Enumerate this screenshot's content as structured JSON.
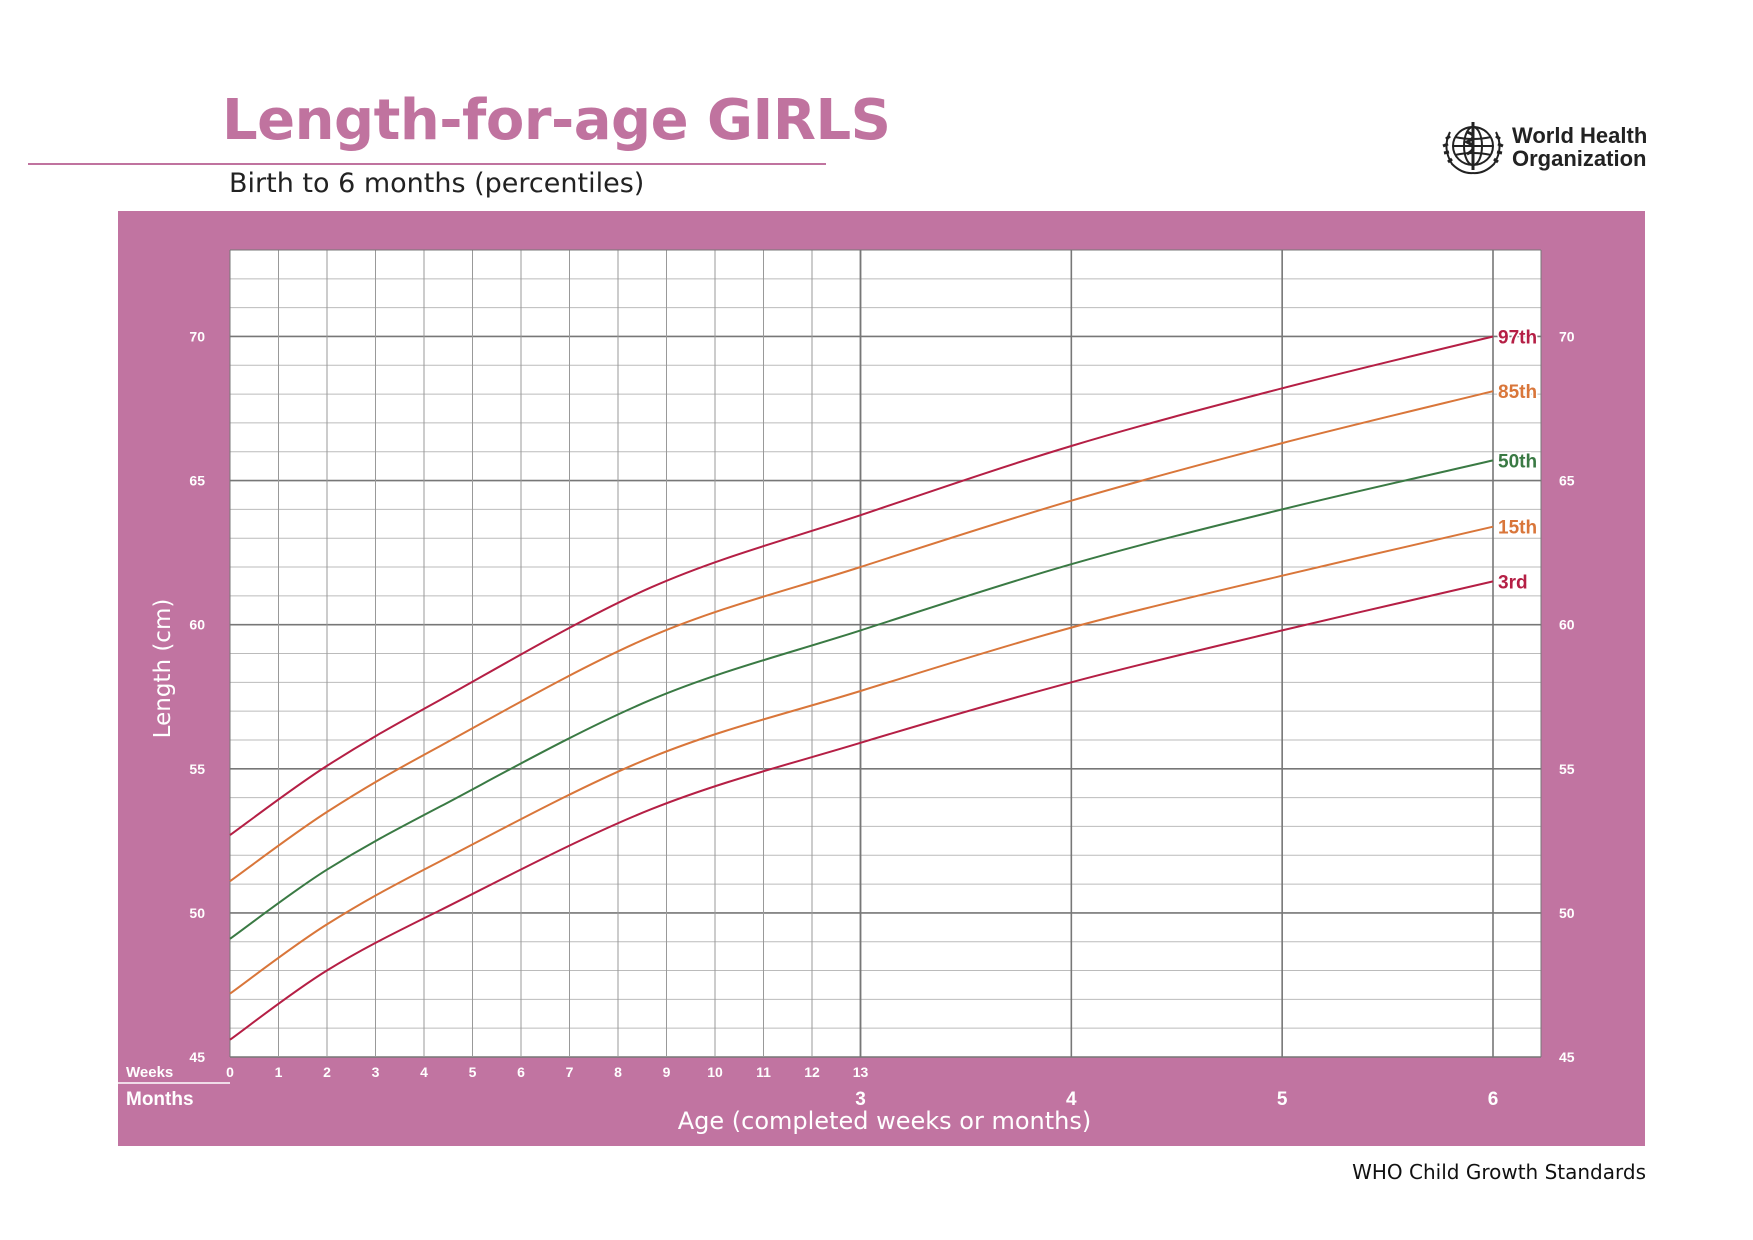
{
  "header": {
    "title": "Length-for-age GIRLS",
    "subtitle": "Birth to 6 months (percentiles)"
  },
  "organization": {
    "line1": "World Health",
    "line2": "Organization",
    "logo_icon": "who-emblem-icon"
  },
  "footer": "WHO Child Growth Standards",
  "colors": {
    "frame": "#c174a1",
    "title": "#c0739f",
    "p97": "#b51f45",
    "p85": "#d9763a",
    "p50": "#3a7a44",
    "p15": "#d9763a",
    "p3": "#b51f45"
  },
  "chart_data": {
    "type": "line",
    "ylabel": "Length (cm)",
    "xlabel": "Age (completed weeks or months)",
    "weeks_label": "Weeks",
    "months_label": "Months",
    "ylim": [
      45,
      73
    ],
    "y_ticks": [
      45,
      50,
      55,
      60,
      65,
      70
    ],
    "week_ticks": [
      "0",
      "1",
      "2",
      "3",
      "4",
      "5",
      "6",
      "7",
      "8",
      "9",
      "10",
      "11",
      "12",
      "13"
    ],
    "month_ticks": [
      "3",
      "4",
      "5",
      "6"
    ],
    "x_unit": "months",
    "grid": true,
    "x": [
      0,
      0.46,
      1,
      2,
      3,
      4,
      5,
      6
    ],
    "series": [
      {
        "name": "97th",
        "color": "#b51f45",
        "values": [
          52.7,
          55.1,
          57.4,
          61.3,
          63.8,
          66.2,
          68.2,
          70.0
        ]
      },
      {
        "name": "85th",
        "color": "#d9763a",
        "values": [
          51.1,
          53.5,
          55.8,
          59.6,
          62.0,
          64.3,
          66.3,
          68.1
        ]
      },
      {
        "name": "50th",
        "color": "#3a7a44",
        "values": [
          49.1,
          51.5,
          53.7,
          57.4,
          59.8,
          62.1,
          64.0,
          65.7
        ]
      },
      {
        "name": "15th",
        "color": "#d9763a",
        "values": [
          47.2,
          49.6,
          51.8,
          55.4,
          57.7,
          59.9,
          61.7,
          63.4
        ]
      },
      {
        "name": "3rd",
        "color": "#b51f45",
        "values": [
          45.6,
          48.0,
          50.1,
          53.6,
          55.9,
          58.0,
          59.8,
          61.5
        ]
      }
    ]
  }
}
